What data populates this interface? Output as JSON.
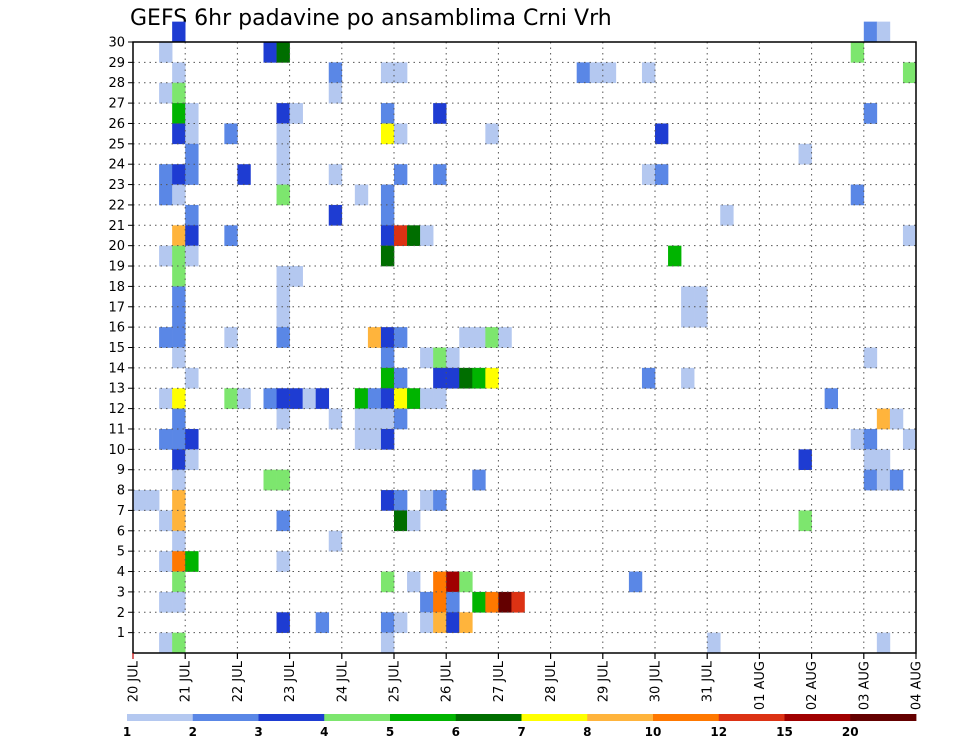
{
  "chart_data": {
    "type": "heatmap",
    "title": "GEFS 6hr padavine po ansamblima Crni Vrh",
    "xlabel": "",
    "ylabel": "",
    "x_tick_labels": [
      "20 JUL",
      "21 JUL",
      "22 JUL",
      "23 JUL",
      "24 JUL",
      "25 JUL",
      "26 JUL",
      "27 JUL",
      "28 JUL",
      "29 JUL",
      "30 JUL",
      "31 JUL",
      "01 AUG",
      "02 AUG",
      "03 AUG",
      "04 AUG"
    ],
    "x_steps_per_day": 4,
    "x_range_steps": [
      0,
      60
    ],
    "y_tick_labels": [
      "1",
      "2",
      "3",
      "4",
      "5",
      "6",
      "7",
      "8",
      "9",
      "10",
      "11",
      "12",
      "13",
      "14",
      "15",
      "16",
      "17",
      "18",
      "19",
      "20",
      "21",
      "22",
      "23",
      "24",
      "25",
      "26",
      "27",
      "28",
      "29",
      "30"
    ],
    "y_range": [
      0,
      30
    ],
    "grid": "dotted",
    "colorbar": {
      "labels": [
        "1",
        "2",
        "3",
        "4",
        "5",
        "6",
        "7",
        "8",
        "10",
        "12",
        "15",
        "20"
      ],
      "colors": [
        "#b4c8f0",
        "#5a87e6",
        "#1e3cd2",
        "#7de66e",
        "#00b400",
        "#006e00",
        "#ffff00",
        "#ffb43c",
        "#ff7800",
        "#dc3214",
        "#a00000",
        "#640000"
      ]
    },
    "cells": [
      [
        3,
        30,
        2
      ],
      [
        56,
        30,
        1
      ],
      [
        57,
        30,
        0
      ],
      [
        2,
        29,
        0
      ],
      [
        10,
        29,
        2
      ],
      [
        11,
        29,
        5
      ],
      [
        55,
        29,
        3
      ],
      [
        3,
        28,
        0
      ],
      [
        15,
        28,
        1
      ],
      [
        19,
        28,
        0
      ],
      [
        20,
        28,
        0
      ],
      [
        34,
        28,
        1
      ],
      [
        35,
        28,
        0
      ],
      [
        36,
        28,
        0
      ],
      [
        39,
        28,
        0
      ],
      [
        59,
        28,
        3
      ],
      [
        2,
        27,
        0
      ],
      [
        3,
        27,
        3
      ],
      [
        15,
        27,
        0
      ],
      [
        3,
        26,
        4
      ],
      [
        4,
        26,
        0
      ],
      [
        11,
        26,
        2
      ],
      [
        12,
        26,
        0
      ],
      [
        19,
        26,
        1
      ],
      [
        23,
        26,
        2
      ],
      [
        56,
        26,
        1
      ],
      [
        3,
        25,
        2
      ],
      [
        4,
        25,
        0
      ],
      [
        7,
        25,
        1
      ],
      [
        11,
        25,
        0
      ],
      [
        19,
        25,
        6
      ],
      [
        20,
        25,
        0
      ],
      [
        27,
        25,
        0
      ],
      [
        40,
        25,
        2
      ],
      [
        4,
        24,
        1
      ],
      [
        11,
        24,
        0
      ],
      [
        51,
        24,
        0
      ],
      [
        2,
        23,
        1
      ],
      [
        3,
        23,
        2
      ],
      [
        4,
        23,
        1
      ],
      [
        8,
        23,
        2
      ],
      [
        11,
        23,
        0
      ],
      [
        15,
        23,
        0
      ],
      [
        20,
        23,
        1
      ],
      [
        23,
        23,
        1
      ],
      [
        39,
        23,
        0
      ],
      [
        40,
        23,
        1
      ],
      [
        2,
        22,
        1
      ],
      [
        3,
        22,
        0
      ],
      [
        11,
        22,
        3
      ],
      [
        17,
        22,
        0
      ],
      [
        19,
        22,
        1
      ],
      [
        55,
        22,
        1
      ],
      [
        4,
        21,
        1
      ],
      [
        15,
        21,
        2
      ],
      [
        19,
        21,
        1
      ],
      [
        45,
        21,
        0
      ],
      [
        3,
        20,
        7
      ],
      [
        4,
        20,
        2
      ],
      [
        7,
        20,
        1
      ],
      [
        19,
        20,
        2
      ],
      [
        20,
        20,
        9
      ],
      [
        21,
        20,
        5
      ],
      [
        22,
        20,
        0
      ],
      [
        59,
        20,
        0
      ],
      [
        2,
        19,
        0
      ],
      [
        3,
        19,
        3
      ],
      [
        4,
        19,
        0
      ],
      [
        19,
        19,
        5
      ],
      [
        41,
        19,
        4
      ],
      [
        3,
        18,
        3
      ],
      [
        11,
        18,
        0
      ],
      [
        12,
        18,
        0
      ],
      [
        3,
        17,
        1
      ],
      [
        11,
        17,
        0
      ],
      [
        42,
        17,
        0
      ],
      [
        43,
        17,
        0
      ],
      [
        3,
        16,
        1
      ],
      [
        11,
        16,
        0
      ],
      [
        42,
        16,
        0
      ],
      [
        43,
        16,
        0
      ],
      [
        2,
        15,
        1
      ],
      [
        3,
        15,
        1
      ],
      [
        7,
        15,
        0
      ],
      [
        11,
        15,
        1
      ],
      [
        18,
        15,
        7
      ],
      [
        19,
        15,
        2
      ],
      [
        20,
        15,
        1
      ],
      [
        25,
        15,
        0
      ],
      [
        26,
        15,
        0
      ],
      [
        27,
        15,
        3
      ],
      [
        28,
        15,
        0
      ],
      [
        3,
        14,
        0
      ],
      [
        19,
        14,
        1
      ],
      [
        22,
        14,
        0
      ],
      [
        23,
        14,
        3
      ],
      [
        24,
        14,
        0
      ],
      [
        56,
        14,
        0
      ],
      [
        4,
        13,
        0
      ],
      [
        19,
        13,
        4
      ],
      [
        20,
        13,
        1
      ],
      [
        23,
        13,
        2
      ],
      [
        24,
        13,
        2
      ],
      [
        25,
        13,
        5
      ],
      [
        26,
        13,
        4
      ],
      [
        27,
        13,
        6
      ],
      [
        39,
        13,
        1
      ],
      [
        42,
        13,
        0
      ],
      [
        2,
        12,
        0
      ],
      [
        3,
        12,
        6
      ],
      [
        7,
        12,
        3
      ],
      [
        8,
        12,
        0
      ],
      [
        10,
        12,
        1
      ],
      [
        11,
        12,
        2
      ],
      [
        12,
        12,
        2
      ],
      [
        13,
        12,
        0
      ],
      [
        14,
        12,
        2
      ],
      [
        17,
        12,
        4
      ],
      [
        18,
        12,
        1
      ],
      [
        19,
        12,
        2
      ],
      [
        20,
        12,
        6
      ],
      [
        21,
        12,
        4
      ],
      [
        22,
        12,
        0
      ],
      [
        23,
        12,
        0
      ],
      [
        53,
        12,
        1
      ],
      [
        3,
        11,
        1
      ],
      [
        11,
        11,
        0
      ],
      [
        15,
        11,
        0
      ],
      [
        17,
        11,
        0
      ],
      [
        18,
        11,
        0
      ],
      [
        19,
        11,
        0
      ],
      [
        20,
        11,
        1
      ],
      [
        57,
        11,
        7
      ],
      [
        58,
        11,
        0
      ],
      [
        2,
        10,
        1
      ],
      [
        3,
        10,
        1
      ],
      [
        4,
        10,
        2
      ],
      [
        17,
        10,
        0
      ],
      [
        18,
        10,
        0
      ],
      [
        19,
        10,
        2
      ],
      [
        55,
        10,
        0
      ],
      [
        56,
        10,
        1
      ],
      [
        59,
        10,
        0
      ],
      [
        3,
        9,
        2
      ],
      [
        4,
        9,
        0
      ],
      [
        51,
        9,
        2
      ],
      [
        56,
        9,
        0
      ],
      [
        57,
        9,
        0
      ],
      [
        3,
        8,
        0
      ],
      [
        10,
        8,
        3
      ],
      [
        11,
        8,
        3
      ],
      [
        26,
        8,
        1
      ],
      [
        56,
        8,
        1
      ],
      [
        57,
        8,
        0
      ],
      [
        58,
        8,
        1
      ],
      [
        0,
        7,
        0
      ],
      [
        1,
        7,
        0
      ],
      [
        3,
        7,
        7
      ],
      [
        19,
        7,
        2
      ],
      [
        20,
        7,
        1
      ],
      [
        22,
        7,
        0
      ],
      [
        23,
        7,
        1
      ],
      [
        2,
        6,
        0
      ],
      [
        3,
        6,
        7
      ],
      [
        11,
        6,
        1
      ],
      [
        20,
        6,
        5
      ],
      [
        21,
        6,
        0
      ],
      [
        51,
        6,
        3
      ],
      [
        3,
        5,
        0
      ],
      [
        15,
        5,
        0
      ],
      [
        2,
        4,
        0
      ],
      [
        3,
        4,
        8
      ],
      [
        4,
        4,
        4
      ],
      [
        11,
        4,
        0
      ],
      [
        3,
        3,
        3
      ],
      [
        19,
        3,
        3
      ],
      [
        21,
        3,
        0
      ],
      [
        23,
        3,
        8
      ],
      [
        24,
        3,
        10
      ],
      [
        25,
        3,
        3
      ],
      [
        38,
        3,
        1
      ],
      [
        2,
        2,
        0
      ],
      [
        3,
        2,
        0
      ],
      [
        22,
        2,
        1
      ],
      [
        23,
        2,
        8
      ],
      [
        24,
        2,
        1
      ],
      [
        26,
        2,
        4
      ],
      [
        27,
        2,
        8
      ],
      [
        28,
        2,
        11
      ],
      [
        29,
        2,
        9
      ],
      [
        11,
        1,
        2
      ],
      [
        14,
        1,
        1
      ],
      [
        19,
        1,
        1
      ],
      [
        20,
        1,
        0
      ],
      [
        22,
        1,
        0
      ],
      [
        23,
        1,
        7
      ],
      [
        24,
        1,
        2
      ],
      [
        25,
        1,
        7
      ],
      [
        2,
        0,
        0
      ],
      [
        3,
        0,
        3
      ],
      [
        19,
        0,
        0
      ],
      [
        44,
        0,
        0
      ],
      [
        57,
        0,
        0
      ]
    ]
  }
}
